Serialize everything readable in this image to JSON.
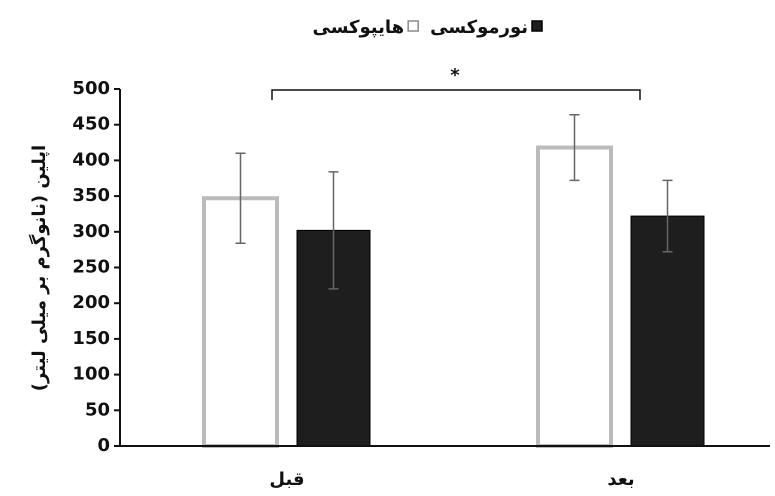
{
  "chart_data": {
    "type": "bar",
    "ylabel": "اپلین (نانوگرم بر میلی لیتر)",
    "categories": [
      "قبل",
      "بعد"
    ],
    "series": [
      {
        "name": "هایپوکسی",
        "color": "#ffffff",
        "values": [
          347,
          418
        ],
        "errors": [
          63,
          46
        ]
      },
      {
        "name": "نورموکسی",
        "color": "#1e1e1e",
        "values": [
          302,
          322
        ],
        "errors": [
          82,
          50
        ]
      }
    ],
    "ylim": [
      0,
      500
    ],
    "yticks": [
      0,
      50,
      100,
      150,
      200,
      250,
      300,
      350,
      400,
      450,
      500
    ],
    "annotation": "*"
  }
}
